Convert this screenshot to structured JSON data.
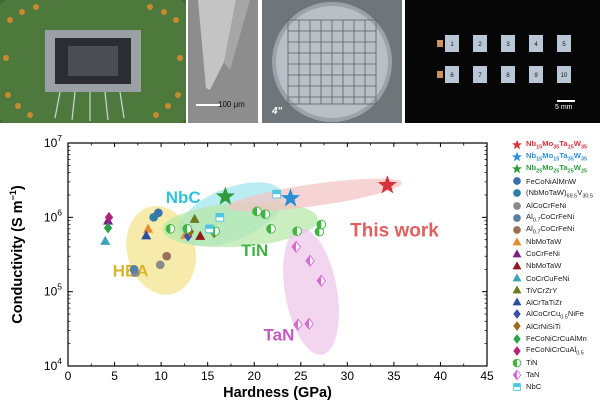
{
  "photos": {
    "p2_scale": "100 μm",
    "p3_label": "4\"",
    "p4_scale": "5 mm",
    "p4_numbers": [
      "1",
      "2",
      "3",
      "4",
      "5",
      "6",
      "7",
      "8",
      "9",
      "10"
    ]
  },
  "colors": {
    "nb15_35_15_35": "#d6323a",
    "nb15_15_35_35": "#2b8fd6",
    "nb25_25_25_25": "#2f9a3c"
  },
  "chart_data": {
    "type": "scatter",
    "xlabel": "Hardness (GPa)",
    "ylabel": "Conductivity (S m⁻¹)",
    "xlim": [
      0,
      45
    ],
    "ylim_log10": [
      4,
      7
    ],
    "xticks": [
      "0",
      "5",
      "10",
      "15",
      "20",
      "25",
      "30",
      "35",
      "40",
      "45"
    ],
    "yticks": [
      {
        "base": "10",
        "exp": "4",
        "value": 10000
      },
      {
        "base": "10",
        "exp": "5",
        "value": 100000
      },
      {
        "base": "10",
        "exp": "6",
        "value": 1000000
      },
      {
        "base": "10",
        "exp": "7",
        "value": 10000000
      }
    ],
    "regions": [
      {
        "label": "HEA",
        "color": "#f3e38a"
      },
      {
        "label": "NbC",
        "color": "#9fe4ee"
      },
      {
        "label": "TiN",
        "color": "#b6e7a6"
      },
      {
        "label": "TaN",
        "color": "#edc6ea"
      },
      {
        "label": "This work",
        "color": "#f4c3c3"
      }
    ],
    "legend": [
      {
        "text": "Nb15Mo35Ta15W35",
        "main": "Nb",
        "subs": [
          [
            "Nb",
            "15"
          ],
          [
            "Mo",
            "35"
          ],
          [
            "Ta",
            "15"
          ],
          [
            "W",
            "35"
          ]
        ],
        "marker": "star",
        "color": "#d6323a"
      },
      {
        "text": "Nb15Mo15Ta35W35",
        "subs": [
          [
            "Nb",
            "15"
          ],
          [
            "Mo",
            "15"
          ],
          [
            "Ta",
            "35"
          ],
          [
            "W",
            "35"
          ]
        ],
        "marker": "star",
        "color": "#2b8fd6"
      },
      {
        "text": "Nb25Mo25Ta25W25",
        "subs": [
          [
            "Nb",
            "25"
          ],
          [
            "Mo",
            "25"
          ],
          [
            "Ta",
            "25"
          ],
          [
            "W",
            "25"
          ]
        ],
        "marker": "star",
        "color": "#2f9a3c"
      },
      {
        "text": "FeCoNiAlMnW",
        "marker": "circle",
        "color": "#3e6fae"
      },
      {
        "text": "(NbMoTaW)69.5V30.5",
        "subs": [
          [
            "(NbMoTaW)",
            "69.5"
          ],
          [
            "V",
            "30.5"
          ]
        ],
        "marker": "circle",
        "color": "#2e7fa8"
      },
      {
        "text": "AlCoCrFeNi",
        "marker": "circle",
        "color": "#8a8a8a"
      },
      {
        "text": "Al0.7CoCrFeNi",
        "subs": [
          [
            "Al",
            "0.7"
          ],
          [
            "CoCrFeNi",
            ""
          ]
        ],
        "marker": "circle",
        "color": "#5b7fa0"
      },
      {
        "text": "Al0.7CoCrFeNi",
        "subs": [
          [
            "Al",
            "0.7"
          ],
          [
            "CoCrFeNi",
            ""
          ]
        ],
        "marker": "circle",
        "color": "#9a6f5a"
      },
      {
        "text": "NbMoTaW",
        "marker": "triangle",
        "color": "#e58a2e"
      },
      {
        "text": "CoCrFeNi",
        "marker": "triangle",
        "color": "#7a1f8c"
      },
      {
        "text": "NbMoTaW",
        "marker": "triangle",
        "color": "#8b1a1a"
      },
      {
        "text": "CoCrCuFeNi",
        "marker": "triangle",
        "color": "#3aa3b8"
      },
      {
        "text": "TiVCrZrY",
        "marker": "triangle",
        "color": "#6f7a1f"
      },
      {
        "text": "AlCrTaTiZr",
        "marker": "triangle",
        "color": "#2b4fa0"
      },
      {
        "text": "AlCoCrCu0.5NiFe",
        "subs": [
          [
            "AlCoCrCu",
            "0.5"
          ],
          [
            "NiFe",
            ""
          ]
        ],
        "marker": "diamond",
        "color": "#3a4fb0"
      },
      {
        "text": "AlCrNiSiTi",
        "marker": "diamond",
        "color": "#9a6a1a"
      },
      {
        "text": "FeCoNiCrCuAlMn",
        "marker": "diamond",
        "color": "#2ca04c"
      },
      {
        "text": "FeCoNiCrCuAl0.5",
        "subs": [
          [
            "FeCoNiCrCuAl",
            "0.5"
          ]
        ],
        "marker": "diamond",
        "color": "#b0237a"
      },
      {
        "text": "TiN",
        "marker": "halfcircle",
        "color": "#3fb43f"
      },
      {
        "text": "TaN",
        "marker": "halfdiamond",
        "color": "#d56ad0"
      },
      {
        "text": "NbC",
        "marker": "halfsquare",
        "color": "#4ec8e0"
      }
    ],
    "series": [
      {
        "name": "Nb15Mo35Ta15W35",
        "marker": "star",
        "color": "#d6323a",
        "points": [
          [
            34.3,
            2700000
          ]
        ]
      },
      {
        "name": "Nb15Mo15Ta35W35",
        "marker": "star",
        "color": "#2b8fd6",
        "points": [
          [
            23.9,
            1800000
          ]
        ]
      },
      {
        "name": "Nb25Mo25Ta25W25",
        "marker": "star",
        "color": "#2f9a3c",
        "points": [
          [
            16.9,
            1900000
          ]
        ]
      },
      {
        "name": "FeCoNiAlMnW",
        "marker": "circle",
        "color": "#3e6fae",
        "points": [
          [
            9.7,
            1150000
          ]
        ]
      },
      {
        "name": "(NbMoTaW)69.5V30.5",
        "marker": "circle",
        "color": "#2e7fa8",
        "points": [
          [
            9.2,
            1000000
          ]
        ]
      },
      {
        "name": "AlCoCrFeNi",
        "marker": "circle",
        "color": "#8a8a8a",
        "points": [
          [
            7.2,
            180000
          ],
          [
            9.9,
            230000
          ]
        ]
      },
      {
        "name": "Al0.7CoCrFeNi",
        "marker": "circle",
        "color": "#5b7fa0",
        "points": [
          [
            7.1,
            200000
          ]
        ]
      },
      {
        "name": "Al0.7CoCrFeNi",
        "marker": "circle",
        "color": "#9a6f5a",
        "points": [
          [
            10.6,
            300000
          ]
        ]
      },
      {
        "name": "NbMoTaW",
        "marker": "triangle",
        "color": "#e58a2e",
        "points": [
          [
            8.6,
            700000
          ],
          [
            12.6,
            580000
          ]
        ]
      },
      {
        "name": "CoCrFeNi",
        "marker": "triangle",
        "color": "#7a1f8c",
        "points": [
          [
            4.3,
            900000
          ]
        ]
      },
      {
        "name": "NbMoTaW",
        "marker": "triangle",
        "color": "#8b1a1a",
        "points": [
          [
            14.2,
            560000
          ]
        ]
      },
      {
        "name": "CoCrCuFeNi",
        "marker": "triangle",
        "color": "#3aa3b8",
        "points": [
          [
            4.0,
            480000
          ]
        ]
      },
      {
        "name": "TiVCrZrY",
        "marker": "triangle",
        "color": "#6f7a1f",
        "points": [
          [
            13.6,
            950000
          ]
        ]
      },
      {
        "name": "AlCrTaTiZr",
        "marker": "triangle",
        "color": "#2b4fa0",
        "points": [
          [
            8.4,
            570000
          ]
        ]
      },
      {
        "name": "AlCoCrCu0.5NiFe",
        "marker": "diamond",
        "color": "#3a4fb0",
        "points": [
          [
            12.9,
            560000
          ]
        ]
      },
      {
        "name": "AlCrNiSiTi",
        "marker": "diamond",
        "color": "#9a6a1a",
        "points": [
          [
            13.1,
            640000
          ],
          [
            15.7,
            620000
          ]
        ]
      },
      {
        "name": "FeCoNiCrCuAlMn",
        "marker": "diamond",
        "color": "#2ca04c",
        "points": [
          [
            4.3,
            720000
          ]
        ]
      },
      {
        "name": "FeCoNiCrCuAl0.5",
        "marker": "diamond",
        "color": "#b0237a",
        "points": [
          [
            4.4,
            1000000
          ]
        ]
      },
      {
        "name": "TiN",
        "marker": "halfcircle",
        "color": "#3fb43f",
        "points": [
          [
            11.0,
            700000
          ],
          [
            12.8,
            700000
          ],
          [
            15.8,
            650000
          ],
          [
            20.3,
            1200000
          ],
          [
            21.2,
            1100000
          ],
          [
            21.8,
            700000
          ],
          [
            24.6,
            650000
          ],
          [
            27.0,
            640000
          ],
          [
            27.2,
            800000
          ]
        ]
      },
      {
        "name": "TaN",
        "marker": "halfdiamond",
        "color": "#d56ad0",
        "points": [
          [
            24.5,
            400000
          ],
          [
            26.0,
            260000
          ],
          [
            27.2,
            140000
          ],
          [
            25.9,
            37000
          ],
          [
            24.7,
            36000
          ]
        ]
      },
      {
        "name": "NbC",
        "marker": "halfsquare",
        "color": "#4ec8e0",
        "points": [
          [
            15.2,
            700000
          ],
          [
            16.3,
            1000000
          ],
          [
            22.4,
            2050000
          ]
        ]
      }
    ]
  }
}
